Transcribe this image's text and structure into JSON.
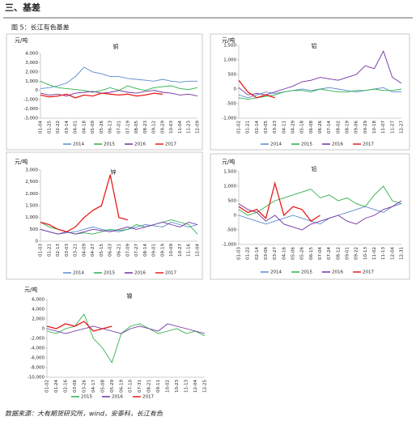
{
  "header": {
    "section": "三、基差",
    "figure": "图 5：长江有色基差"
  },
  "chart_data": [
    {
      "type": "line",
      "title": "铜",
      "ylabel": "元/吨",
      "categories": [
        "01-04",
        "01-25",
        "02-22",
        "03-14",
        "04-01",
        "04-18",
        "05-09",
        "05-26",
        "06-13",
        "07-01",
        "07-19",
        "08-05",
        "08-23",
        "09-12",
        "09-29",
        "10-03",
        "11-04",
        "11-23",
        "12-09"
      ],
      "ylim": [
        -3000,
        4000
      ],
      "yticks": [
        {
          "value": -3000,
          "label": "-3,000"
        },
        {
          "value": -2000,
          "label": "-2,000"
        },
        {
          "value": -1000,
          "label": "-1,000"
        },
        0,
        {
          "value": 1000,
          "label": "1,000"
        },
        {
          "value": 2000,
          "label": "2,000"
        },
        {
          "value": 3000,
          "label": "3,000"
        },
        {
          "value": 4000,
          "label": "4,000"
        }
      ],
      "series": [
        {
          "name": "2014",
          "color": "#5b8bd0",
          "values": [
            200,
            300,
            500,
            800,
            1500,
            2500,
            2000,
            1800,
            1500,
            1500,
            1300,
            1200,
            1100,
            1000,
            1200,
            1000,
            900,
            1000,
            1000
          ]
        },
        {
          "name": "2015",
          "color": "#2eb04a",
          "values": [
            1000,
            600,
            300,
            200,
            100,
            0,
            -200,
            0,
            300,
            0,
            500,
            200,
            0,
            300,
            400,
            500,
            200,
            100,
            300
          ]
        },
        {
          "name": "2016",
          "color": "#7030a0",
          "values": [
            -300,
            -500,
            -400,
            -600,
            -300,
            -200,
            -100,
            -300,
            -200,
            0,
            -200,
            -300,
            -100,
            0,
            -200,
            -300,
            -500,
            -400,
            -600
          ]
        },
        {
          "name": "2017",
          "color": "#e81c1c",
          "values": [
            -500,
            -700,
            -600,
            -400,
            -800,
            -500,
            -600,
            -300,
            -400,
            -500,
            -400,
            -600,
            -500,
            -300,
            -400,
            null,
            null,
            null,
            null
          ]
        }
      ]
    },
    {
      "type": "line",
      "title": "铝",
      "ylabel": "元/吨",
      "categories": [
        "01-02",
        "01-21",
        "02-14",
        "03-05",
        "03-23",
        "04-11",
        "04-29",
        "05-18",
        "06-08",
        "06-26",
        "07-14",
        "08-02",
        "08-19",
        "09-06",
        "09-29",
        "10-18",
        "11-07",
        "11-27",
        "12-27"
      ],
      "ylim": [
        -1000,
        1500
      ],
      "yticks": [
        {
          "value": -1000,
          "label": "-1,000"
        },
        -500,
        0,
        500,
        {
          "value": 1000,
          "label": "1,000"
        },
        {
          "value": 1500,
          "label": "1,500"
        }
      ],
      "series": [
        {
          "name": "2014",
          "color": "#5b8bd0",
          "values": [
            -200,
            -300,
            -200,
            -100,
            -150,
            -100,
            -50,
            0,
            -50,
            0,
            50,
            0,
            -50,
            -100,
            -50,
            0,
            50,
            -100,
            -100
          ]
        },
        {
          "name": "2015",
          "color": "#2eb04a",
          "values": [
            -300,
            -350,
            -300,
            -250,
            -200,
            -100,
            -50,
            -50,
            -100,
            0,
            -50,
            -100,
            -100,
            -50,
            -50,
            0,
            -50,
            -50,
            0
          ]
        },
        {
          "name": "2016",
          "color": "#7030a0",
          "values": [
            50,
            -200,
            -150,
            -200,
            -100,
            0,
            100,
            250,
            300,
            400,
            350,
            300,
            400,
            500,
            800,
            700,
            1300,
            400,
            200
          ]
        },
        {
          "name": "2017",
          "color": "#e81c1c",
          "values": [
            300,
            -100,
            -300,
            -200,
            -300,
            null,
            null,
            null,
            null,
            null,
            null,
            null,
            null,
            null,
            null,
            null,
            null,
            null,
            null
          ]
        }
      ]
    },
    {
      "type": "line",
      "title": "锌",
      "ylabel": "元/吨",
      "categories": [
        "01-03",
        "01-21",
        "02-13",
        "03-03",
        "03-21",
        "04-09",
        "04-27",
        "05-15",
        "06-03",
        "06-21",
        "07-09",
        "07-27",
        "08-14",
        "09-01",
        "09-19",
        "10-09",
        "10-27",
        "11-16",
        "12-04"
      ],
      "ylim": [
        0,
        3000
      ],
      "yticks": [
        0,
        500,
        {
          "value": 1000,
          "label": "1,000"
        },
        {
          "value": 1500,
          "label": "1,500"
        },
        {
          "value": 2000,
          "label": "2,000"
        },
        {
          "value": 2500,
          "label": "2,500"
        },
        {
          "value": 3000,
          "label": "3,000"
        }
      ],
      "series": [
        {
          "name": "2014",
          "color": "#5b8bd0",
          "values": [
            500,
            400,
            300,
            350,
            400,
            500,
            600,
            500,
            450,
            400,
            500,
            600,
            700,
            650,
            600,
            800,
            700,
            600,
            700
          ]
        },
        {
          "name": "2015",
          "color": "#2eb04a",
          "values": [
            800,
            600,
            500,
            400,
            300,
            350,
            300,
            400,
            500,
            450,
            500,
            700,
            600,
            700,
            800,
            900,
            800,
            700,
            300
          ]
        },
        {
          "name": "2016",
          "color": "#7030a0",
          "values": [
            500,
            400,
            300,
            400,
            300,
            400,
            500,
            450,
            400,
            500,
            600,
            500,
            600,
            700,
            800,
            700,
            600,
            800,
            700
          ]
        },
        {
          "name": "2017",
          "color": "#e81c1c",
          "values": [
            800,
            700,
            500,
            400,
            600,
            1000,
            1300,
            1500,
            2800,
            1000,
            900,
            null,
            null,
            null,
            null,
            null,
            null,
            null,
            null
          ]
        }
      ]
    },
    {
      "type": "line",
      "title": "铅",
      "ylabel": "元/吨",
      "categories": [
        "01-03",
        "01-22",
        "02-14",
        "03-06",
        "03-27",
        "04-16",
        "05-06",
        "05-26",
        "06-15",
        "07-04",
        "07-24",
        "08-12",
        "09-01",
        "09-22",
        "10-13",
        "11-02",
        "11-13",
        "12-04",
        "12-31"
      ],
      "ylim": [
        -1000,
        1500
      ],
      "yticks": [
        {
          "value": -1000,
          "label": "-1,000"
        },
        -500,
        0,
        500,
        {
          "value": 1000,
          "label": "1,000"
        },
        {
          "value": 1500,
          "label": "1,500"
        }
      ],
      "series": [
        {
          "name": "2014",
          "color": "#5b8bd0",
          "values": [
            0,
            -100,
            -200,
            -300,
            -200,
            -100,
            0,
            -100,
            -200,
            -300,
            -100,
            0,
            100,
            200,
            300,
            200,
            100,
            300,
            400
          ]
        },
        {
          "name": "2015",
          "color": "#2eb04a",
          "values": [
            200,
            0,
            100,
            300,
            500,
            600,
            700,
            800,
            900,
            600,
            700,
            500,
            600,
            400,
            300,
            700,
            1000,
            500,
            400
          ]
        },
        {
          "name": "2016",
          "color": "#7030a0",
          "values": [
            400,
            200,
            100,
            -200,
            0,
            -300,
            -400,
            -500,
            -300,
            -200,
            -100,
            0,
            -200,
            -300,
            -100,
            0,
            200,
            300,
            500
          ]
        },
        {
          "name": "2017",
          "color": "#e81c1c",
          "values": [
            300,
            100,
            200,
            -100,
            1100,
            0,
            300,
            200,
            -200,
            0,
            null,
            null,
            null,
            null,
            null,
            null,
            null,
            null,
            null
          ]
        }
      ]
    },
    {
      "type": "line",
      "title": "镍",
      "ylabel": "元/吨",
      "categories": [
        "01-02",
        "01-24",
        "02-16",
        "03-06",
        "03-26",
        "04-17",
        "05-08",
        "05-29",
        "06-19",
        "07-10",
        "07-31",
        "08-21",
        "09-11",
        "10-02",
        "10-23",
        "11-13",
        "12-04",
        "12-25"
      ],
      "ylim": [
        -10000,
        6000
      ],
      "yticks": [
        {
          "value": -10000,
          "label": "-10,000"
        },
        {
          "value": -8000,
          "label": "-8,000"
        },
        {
          "value": -6000,
          "label": "-6,000"
        },
        {
          "value": -4000,
          "label": "-4,000"
        },
        {
          "value": -2000,
          "label": "-2,000"
        },
        0,
        {
          "value": 2000,
          "label": "2,000"
        },
        {
          "value": 4000,
          "label": "4,000"
        },
        {
          "value": 6000,
          "label": "6,000"
        }
      ],
      "series": [
        {
          "name": "2015",
          "color": "#2eb04a",
          "values": [
            -500,
            -1000,
            0,
            500,
            3000,
            -2000,
            -4000,
            -7000,
            -1000,
            500,
            1000,
            0,
            -1000,
            -500,
            0,
            -1000,
            -500,
            -1500
          ]
        },
        {
          "name": "2016",
          "color": "#7030a0",
          "values": [
            0,
            -500,
            -1000,
            -500,
            0,
            500,
            0,
            -500,
            -1000,
            0,
            500,
            0,
            -500,
            1000,
            500,
            0,
            -500,
            -1000
          ]
        },
        {
          "name": "2017",
          "color": "#e81c1c",
          "values": [
            500,
            0,
            1000,
            500,
            1500,
            -500,
            0,
            500,
            null,
            null,
            null,
            null,
            null,
            null,
            null,
            null,
            null,
            null
          ]
        }
      ]
    }
  ],
  "footer": "数据来源：大有期货研究所，wind，安泰科，长江有色"
}
